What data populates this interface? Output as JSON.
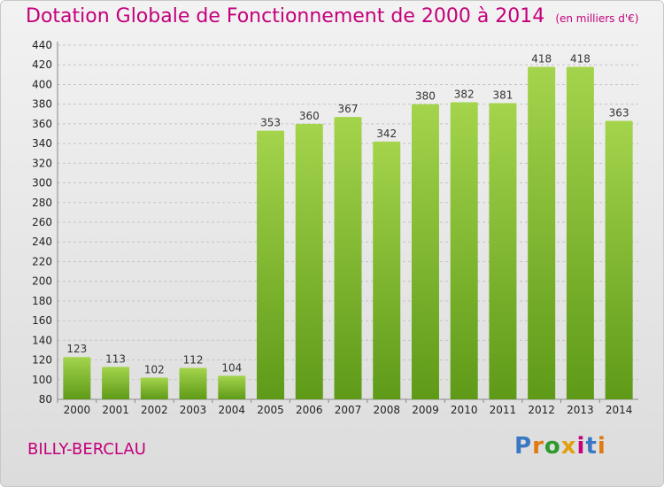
{
  "header": {
    "title": "Dotation Globale de Fonctionnement de 2000 à 2014",
    "unit": "(en milliers d'€)"
  },
  "footer": {
    "commune": "BILLY-BERCLAU",
    "logo": "Proxiti"
  },
  "colors": {
    "title": "#c4007a",
    "bar_top": "#a4d44c",
    "bar_bottom": "#5e9a18",
    "logo": [
      "#3a78c4",
      "#e07a10",
      "#2c9a2c",
      "#e0a010",
      "#c4007a",
      "#3a78c4",
      "#e07a10"
    ]
  },
  "chart_data": {
    "type": "bar",
    "categories": [
      "2000",
      "2001",
      "2002",
      "2003",
      "2004",
      "2005",
      "2006",
      "2007",
      "2008",
      "2009",
      "2010",
      "2011",
      "2012",
      "2013",
      "2014"
    ],
    "values": [
      123,
      113,
      102,
      112,
      104,
      353,
      360,
      367,
      342,
      380,
      382,
      381,
      418,
      418,
      363
    ],
    "ylim": [
      80,
      440
    ],
    "yticks": [
      80,
      100,
      120,
      140,
      160,
      180,
      200,
      220,
      240,
      260,
      280,
      300,
      320,
      340,
      360,
      380,
      400,
      420,
      440
    ],
    "grid": true,
    "data_labels": true
  }
}
